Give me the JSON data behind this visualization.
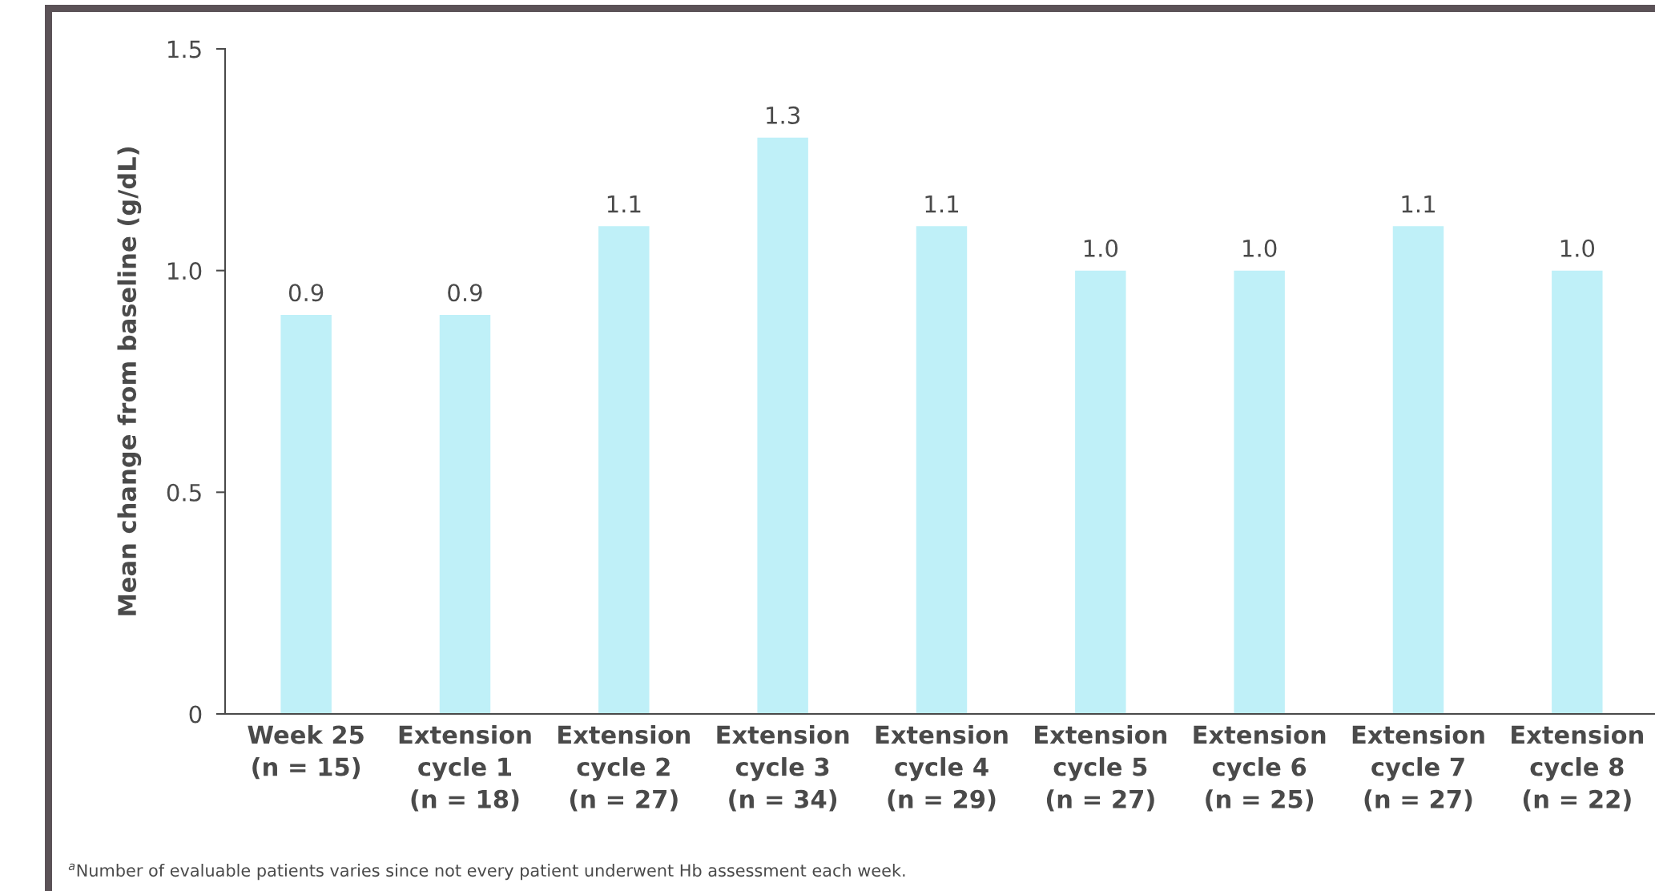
{
  "chart_data": {
    "type": "bar",
    "ylabel": "Mean change from baseline (g/dL)",
    "categories": [
      "Week 25\n(n = 15)",
      "Extension\ncycle 1\n(n = 18)",
      "Extension\ncycle 2\n(n = 27)",
      "Extension\ncycle 3\n(n = 34)",
      "Extension\ncycle 4\n(n = 29)",
      "Extension\ncycle 5\n(n = 27)",
      "Extension\ncycle 6\n(n = 25)",
      "Extension\ncycle 7\n(n = 27)",
      "Extension\ncycle 8\n(n = 22)"
    ],
    "values": [
      0.9,
      0.9,
      1.1,
      1.3,
      1.1,
      1.0,
      1.0,
      1.1,
      1.0
    ],
    "value_labels": [
      "0.9",
      "0.9",
      "1.1",
      "1.3",
      "1.1",
      "1.0",
      "1.0",
      "1.1",
      "1.0"
    ],
    "color": "#bff0f8",
    "ylim": [
      0,
      1.5
    ],
    "yticks": [
      {
        "value": 0,
        "label": "0"
      },
      {
        "value": 0.5,
        "label": "0.5"
      },
      {
        "value": 1,
        "label": "1.0"
      },
      {
        "value": 1.5,
        "label": "1.5"
      }
    ],
    "grid": false,
    "legend": false,
    "annotations": [
      "$^{a}$Number of evaluable patients varies since not every patient underwent Hb assessment each week."
    ]
  }
}
